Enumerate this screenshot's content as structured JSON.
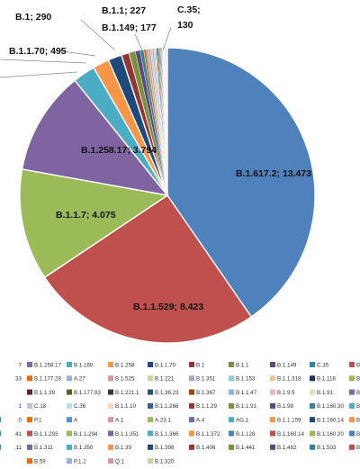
{
  "chart_data": {
    "type": "pie",
    "slices": [
      {
        "name": "B.1.617.2",
        "value": 13473,
        "display": "B.1.617.2; 13.473",
        "color": "#4f81bd"
      },
      {
        "name": "B.1.1.529",
        "value": 8423,
        "display": "B.1.1.529; 8.423",
        "color": "#c0504d"
      },
      {
        "name": "B.1.1.7",
        "value": 4075,
        "display": "B.1.1.7; 4.075",
        "color": "#9bbb59"
      },
      {
        "name": "B.1.258.17",
        "value": 3794,
        "display": "B.1.258.17; 3.794",
        "color": "#8064a2"
      },
      {
        "name": "B.1.160",
        "value": 820,
        "color": "#4bacc6"
      },
      {
        "name": "B.1.258",
        "value": 600,
        "color": "#f79646"
      },
      {
        "name": "B.1.1.70",
        "value": 495,
        "display": "B.1.1.70; 495",
        "color": "#1f497d"
      },
      {
        "name": "B.1",
        "value": 290,
        "display": "B.1; 290",
        "color": "#943634"
      },
      {
        "name": "B.1.1",
        "value": 227,
        "display": "B.1.1; 227",
        "color": "#76923c"
      },
      {
        "name": "B.1.149",
        "value": 177,
        "display": "B.1.149; 177",
        "color": "#5f497a"
      },
      {
        "name": "C.35",
        "value": 130,
        "display": "C.35; 130",
        "color": "#31859c"
      },
      {
        "name": "B.1.221",
        "value": 95,
        "color": "#e36c09"
      },
      {
        "name": "B.1.351",
        "value": 85,
        "color": "#95b3d7"
      },
      {
        "name": "B.1.153",
        "value": 70,
        "color": "#d99694"
      },
      {
        "name": "B.1.1.318",
        "value": 60,
        "color": "#c3d69b"
      },
      {
        "name": "B.1.118",
        "value": 55,
        "color": "#b2a1c7"
      },
      {
        "name": "B.1.1.39",
        "value": 50,
        "color": "#92cddc"
      },
      {
        "name": "B.1.177.83",
        "value": 45,
        "color": "#fac08f"
      },
      {
        "name": "B.1.221.1",
        "value": 40,
        "color": "#17375e"
      },
      {
        "name": "B.1.36.23",
        "value": 36,
        "color": "#632423"
      },
      {
        "name": "B.1.367",
        "value": 33,
        "color": "#4f6228"
      },
      {
        "name": "B.1.1.47",
        "value": 30,
        "color": "#3f3151"
      },
      {
        "name": "B.1.9.5",
        "value": 28,
        "color": "#205867"
      },
      {
        "name": "B.1.91",
        "value": 26,
        "color": "#974806"
      },
      {
        "name": "B.1.160.30",
        "value": 24,
        "color": "#8db3e2"
      },
      {
        "name": "C.36",
        "value": 22,
        "color": "#e5b9b7"
      },
      {
        "name": "B.1.1.10",
        "value": 20,
        "color": "#d7e3bc"
      },
      {
        "name": "B.1.1.266",
        "value": 18,
        "color": "#ccc1d9"
      },
      {
        "name": "B.1.1.29",
        "value": 17,
        "color": "#b7dde8"
      },
      {
        "name": "B.1.1.91",
        "value": 16,
        "color": "#fbd5b5"
      },
      {
        "name": "B.1.98",
        "value": 15,
        "color": "#366092"
      },
      {
        "name": "B.1.160.14",
        "value": 14,
        "color": "#953735"
      },
      {
        "name": "B.1.160.20",
        "value": 13,
        "color": "#77933c"
      },
      {
        "name": "B.1.1.159",
        "value": 12,
        "color": "#604a7b"
      },
      {
        "name": "B.1.441",
        "value": 11,
        "color": "#31849b"
      },
      {
        "name": "B.1.482",
        "value": 10,
        "color": "#e46c0a"
      },
      {
        "name": "B.1.503",
        "value": 9,
        "color": "#558ed5"
      },
      {
        "name": "B.1.320",
        "value": 8,
        "color": "#d99795"
      }
    ],
    "legend": {
      "placement": "bottom",
      "rows": [
        [
          {
            "label": "B.1.258.17",
            "color": "#8064a2"
          },
          {
            "label": "B.1.160",
            "color": "#4bacc6"
          },
          {
            "label": "B.1.258",
            "color": "#f79646"
          },
          {
            "label": "B.1.1.70",
            "color": "#1f497d"
          },
          {
            "label": "B.1",
            "color": "#943634"
          },
          {
            "label": "B.1.1",
            "color": "#76923c"
          },
          {
            "label": "B.1.149",
            "color": "#5f497a"
          },
          {
            "label": "C.35",
            "color": "#31859c"
          }
        ],
        [
          {
            "label": "B.1.177.28",
            "color": "#e36c09"
          },
          {
            "label": "A.27",
            "color": "#95b3d7"
          },
          {
            "label": "B.1.525",
            "color": "#d99694"
          },
          {
            "label": "B.1.221",
            "color": "#c3d69b"
          },
          {
            "label": "B.1.351",
            "color": "#b2a1c7"
          },
          {
            "label": "B.1.153",
            "color": "#92cddc"
          },
          {
            "label": "B.1.1.318",
            "color": "#fac08f"
          },
          {
            "label": "B.1.118",
            "color": "#17375e"
          }
        ],
        [
          {
            "label": "B.1.1.39",
            "color": "#632423"
          },
          {
            "label": "B.1.177.83",
            "color": "#4f6228"
          },
          {
            "label": "B.1.221.1",
            "color": "#3f3151"
          },
          {
            "label": "B.1.36.23",
            "color": "#205867"
          },
          {
            "label": "B.1.367",
            "color": "#974806"
          },
          {
            "label": "B.1.1.47",
            "color": "#8db3e2"
          },
          {
            "label": "B.1.9.5",
            "color": "#e5b9b7"
          },
          {
            "label": "B.1.91",
            "color": "#d7e3bc"
          }
        ],
        [
          {
            "label": "C.18",
            "color": "#ccc1d9"
          },
          {
            "label": "C.36",
            "color": "#b7dde8"
          },
          {
            "label": "B.1.1.10",
            "color": "#fbd5b5"
          },
          {
            "label": "B.1.1.266",
            "color": "#366092"
          },
          {
            "label": "B.1.1.29",
            "color": "#953735"
          },
          {
            "label": "B.1.1.91",
            "color": "#77933c"
          },
          {
            "label": "B.1.98",
            "color": "#604a7b"
          },
          {
            "label": "B.1.160.30",
            "color": "#31849b"
          }
        ],
        [
          {
            "label": "P.1",
            "color": "#e46c0a"
          },
          {
            "label": "A",
            "color": "#558ed5"
          },
          {
            "label": "A.1",
            "color": "#d99795"
          },
          {
            "label": "A.23.1",
            "color": "#9bbb59"
          },
          {
            "label": "A.4",
            "color": "#8064a2"
          },
          {
            "label": "AG.1",
            "color": "#4bacc6"
          },
          {
            "label": "B.1.1.159",
            "color": "#f79646"
          },
          {
            "label": "B.1.160.14",
            "color": "#1f497d"
          }
        ],
        [
          {
            "label": "B.1.1.293",
            "color": "#c0504d"
          },
          {
            "label": "B.1.1.294",
            "color": "#9bbb59"
          },
          {
            "label": "B.1.1.351",
            "color": "#8064a2"
          },
          {
            "label": "B.1.1.366",
            "color": "#4bacc6"
          },
          {
            "label": "B.1.1.372",
            "color": "#f79646"
          },
          {
            "label": "B.1.128",
            "color": "#4f81bd"
          },
          {
            "label": "B.1.160.14",
            "color": "#c0504d"
          },
          {
            "label": "B.1.160.20",
            "color": "#9bbb59"
          }
        ],
        [
          {
            "label": "B.1.311",
            "color": "#8064a2"
          },
          {
            "label": "B.1.350",
            "color": "#4bacc6"
          },
          {
            "label": "B.1.39",
            "color": "#f79646"
          },
          {
            "label": "B.1.398",
            "color": "#1f497d"
          },
          {
            "label": "B.1.406",
            "color": "#943634"
          },
          {
            "label": "B.1.441",
            "color": "#76923c"
          },
          {
            "label": "B.1.482",
            "color": "#5f497a"
          },
          {
            "label": "B.1.503",
            "color": "#31859c"
          }
        ],
        [
          {
            "label": "B.59",
            "color": "#e36c09"
          },
          {
            "label": "P.1.1",
            "color": "#95b3d7"
          },
          {
            "label": "Q.1",
            "color": "#d99694"
          },
          {
            "label": "B.1.320",
            "color": "#c3d69b"
          }
        ]
      ],
      "partial_left": [
        {
          "label": "7",
          "color": ""
        },
        {
          "label": "33",
          "color": ""
        },
        {
          "label": "",
          "color": ""
        },
        {
          "label": "1",
          "color": ""
        },
        {
          "label": "0",
          "color": "#4f81bd"
        },
        {
          "label": "41",
          "color": "#4f81bd"
        },
        {
          "label": ".11",
          "color": "#4f81bd"
        },
        {
          "label": "",
          "color": ""
        }
      ],
      "partial_right": [
        {
          "label": "B.",
          "color": "#c0504d"
        },
        {
          "label": "B.",
          "color": "#9bbb59"
        },
        {
          "label": "B.",
          "color": "#8064a2"
        },
        {
          "label": "B.",
          "color": "#4bacc6"
        },
        {
          "label": "B.",
          "color": "#f79646"
        },
        {
          "label": "B.",
          "color": "#4f81bd"
        },
        {
          "label": "B.",
          "color": "#c0504d"
        },
        {
          "label": "",
          "color": ""
        }
      ]
    }
  }
}
